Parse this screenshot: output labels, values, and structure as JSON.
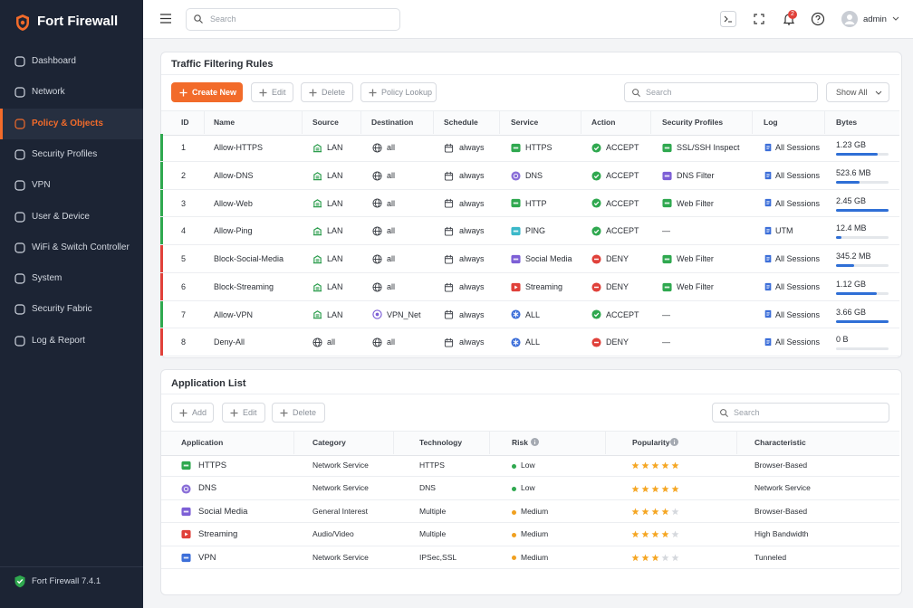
{
  "sidebar": {
    "brand": "Fort Firewall",
    "nav": [
      "Dashboard",
      "Network",
      "Policy & Objects",
      "Security Profiles",
      "VPN",
      "User & Device",
      "WiFi & Switch Controller",
      "System",
      "Security Fabric",
      "Log & Report"
    ],
    "active": 2,
    "accent": "#f26b2a",
    "footer": {
      "product": "Fort Firewall",
      "version": "7.4.1"
    }
  },
  "topbar": {
    "search_placeholder": "Search",
    "notifications": 2,
    "user": "admin"
  },
  "icon_colors": {
    "lan": "#2e9e4f",
    "globe": "#3b3f46",
    "cal": "#3b3f46",
    "vpn": "#7d5fd6",
    "doc": "#3d6fd9"
  },
  "rules": {
    "title": "Traffic Filtering Rules",
    "buttons": [
      "Create New",
      "Edit",
      "Delete",
      "Policy Lookup"
    ],
    "search_placeholder": "Search",
    "filter": "Show All",
    "columns": [
      "ID",
      "Name",
      "Source",
      "Destination",
      "Schedule",
      "Service",
      "Action",
      "Security Profiles",
      "Log",
      "Bytes"
    ],
    "rows": [
      {
        "id": 1,
        "name": "Allow-HTTPS",
        "source": "LAN",
        "source_icon": "lan",
        "destination": "all",
        "destination_icon": "globe",
        "schedule": "always",
        "service": "HTTPS",
        "service_icon": "sq",
        "service_color": "#2fa84f",
        "action": "ACCEPT",
        "action_icon": "check",
        "action_color": "#2fa84f",
        "profile": "SSL/SSH Inspect",
        "profile_color": "#2fa84f",
        "log": "All Sessions",
        "bytes": "1.23 GB",
        "usage": 80
      },
      {
        "id": 2,
        "name": "Allow-DNS",
        "source": "LAN",
        "source_icon": "lan",
        "destination": "all",
        "destination_icon": "globe",
        "schedule": "always",
        "service": "DNS",
        "service_icon": "circ",
        "service_color": "#8a6fd8",
        "action": "ACCEPT",
        "action_icon": "check",
        "action_color": "#2fa84f",
        "profile": "DNS Filter",
        "profile_color": "#7d5fd6",
        "log": "All Sessions",
        "bytes": "523.6 MB",
        "usage": 45
      },
      {
        "id": 3,
        "name": "Allow-Web",
        "source": "LAN",
        "source_icon": "lan",
        "destination": "all",
        "destination_icon": "globe",
        "schedule": "always",
        "service": "HTTP",
        "service_icon": "sq",
        "service_color": "#2fa84f",
        "action": "ACCEPT",
        "action_icon": "check",
        "action_color": "#2fa84f",
        "profile": "Web Filter",
        "profile_color": "#2fa84f",
        "log": "All Sessions",
        "bytes": "2.45 GB",
        "usage": 100
      },
      {
        "id": 4,
        "name": "Allow-Ping",
        "source": "LAN",
        "source_icon": "lan",
        "destination": "all",
        "destination_icon": "globe",
        "schedule": "always",
        "service": "PING",
        "service_icon": "sq",
        "service_color": "#3bb8c9",
        "action": "ACCEPT",
        "action_icon": "check",
        "action_color": "#2fa84f",
        "profile": "—",
        "profile_color": null,
        "log": "UTM",
        "bytes": "12.4 MB",
        "usage": 10
      },
      {
        "id": 5,
        "name": "Block-Social-Media",
        "source": "LAN",
        "source_icon": "lan",
        "destination": "all",
        "destination_icon": "globe",
        "schedule": "always",
        "service": "Social Media",
        "service_icon": "sq",
        "service_color": "#7d5fd6",
        "action": "DENY",
        "action_icon": "minus",
        "action_color": "#e0413a",
        "profile": "Web Filter",
        "profile_color": "#2fa84f",
        "log": "All Sessions",
        "bytes": "345.2 MB",
        "usage": 35
      },
      {
        "id": 6,
        "name": "Block-Streaming",
        "source": "LAN",
        "source_icon": "lan",
        "destination": "all",
        "destination_icon": "globe",
        "schedule": "always",
        "service": "Streaming",
        "service_icon": "play",
        "service_color": "#e0413a",
        "action": "DENY",
        "action_icon": "minus",
        "action_color": "#e0413a",
        "profile": "Web Filter",
        "profile_color": "#2fa84f",
        "log": "All Sessions",
        "bytes": "1.12 GB",
        "usage": 78
      },
      {
        "id": 7,
        "name": "Allow-VPN",
        "source": "LAN",
        "source_icon": "lan",
        "destination": "VPN_Net",
        "destination_icon": "vpn",
        "schedule": "always",
        "service": "ALL",
        "service_icon": "star",
        "service_color": "#3d6fd9",
        "action": "ACCEPT",
        "action_icon": "check",
        "action_color": "#2fa84f",
        "profile": "—",
        "profile_color": null,
        "log": "All Sessions",
        "bytes": "3.66 GB",
        "usage": 100
      },
      {
        "id": 8,
        "name": "Deny-All",
        "source": "all",
        "source_icon": "globe",
        "destination": "all",
        "destination_icon": "globe",
        "schedule": "always",
        "service": "ALL",
        "service_icon": "star",
        "service_color": "#3d6fd9",
        "action": "DENY",
        "action_icon": "minus",
        "action_color": "#e0413a",
        "profile": "—",
        "profile_color": null,
        "log": "All Sessions",
        "bytes": "0 B",
        "usage": 0
      }
    ],
    "bar_color": "#2f6fd6"
  },
  "applications": {
    "title": "Application List",
    "buttons": [
      "Add",
      "Edit",
      "Delete"
    ],
    "search_placeholder": "Search",
    "columns": [
      "Application",
      "Category",
      "Technology",
      "Risk",
      "Popularity",
      "Characteristic"
    ],
    "popularity_scale": 5,
    "star_color": "#f5a623",
    "rows": [
      {
        "name": "HTTPS",
        "icon": "sq",
        "color": "#2fa84f",
        "category": "Network Service",
        "technology": "HTTPS",
        "risk": "Low",
        "risk_color": "#2fa84f",
        "popularity": 5,
        "characteristic": "Browser-Based"
      },
      {
        "name": "DNS",
        "icon": "circ",
        "color": "#8a6fd8",
        "category": "Network Service",
        "technology": "DNS",
        "risk": "Low",
        "risk_color": "#2fa84f",
        "popularity": 5,
        "characteristic": "Network Service"
      },
      {
        "name": "Social Media",
        "icon": "sq",
        "color": "#7d5fd6",
        "category": "General Interest",
        "technology": "Multiple",
        "risk": "Medium",
        "risk_color": "#f0a020",
        "popularity": 4,
        "characteristic": "Browser-Based"
      },
      {
        "name": "Streaming",
        "icon": "play",
        "color": "#e0413a",
        "category": "Audio/Video",
        "technology": "Multiple",
        "risk": "Medium",
        "risk_color": "#f0a020",
        "popularity": 4,
        "characteristic": "High Bandwidth"
      },
      {
        "name": "VPN",
        "icon": "sq",
        "color": "#3d6fd9",
        "category": "Network Service",
        "technology": "IPSec,SSL",
        "risk": "Medium",
        "risk_color": "#f0a020",
        "popularity": 3,
        "characteristic": "Tunneled"
      }
    ]
  }
}
